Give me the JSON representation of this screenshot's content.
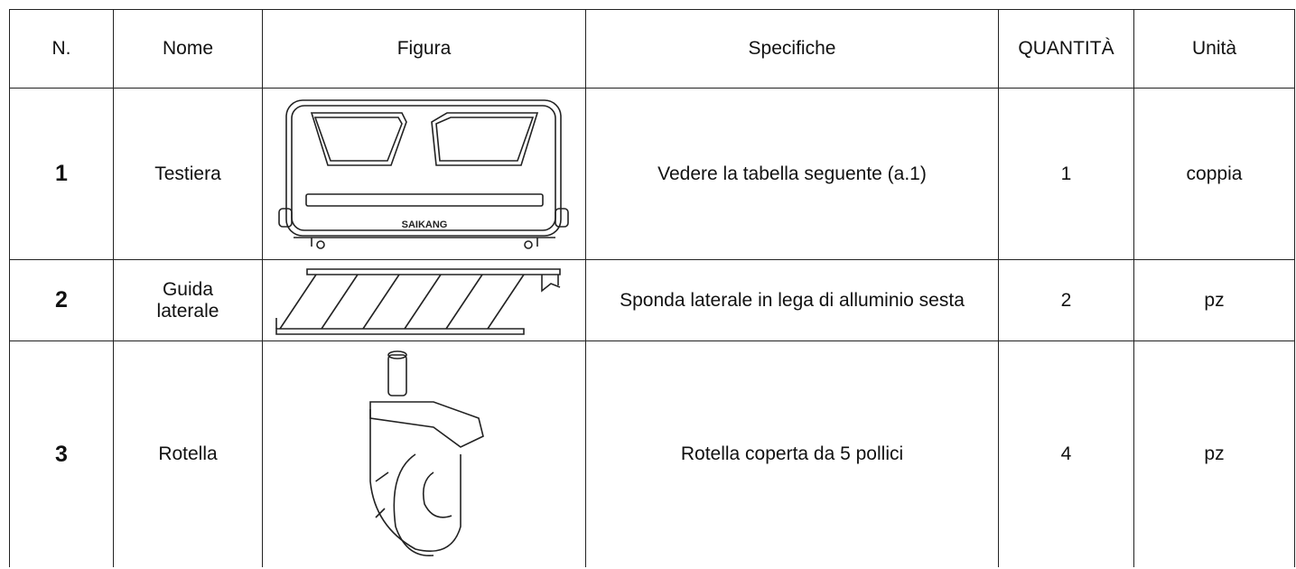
{
  "table": {
    "header": [
      "N.",
      "Nome",
      "Figura",
      "Specifiche",
      "QUANTITÀ",
      "Unità"
    ],
    "rows": [
      {
        "number": 1,
        "name": "Testiera",
        "figure_label": "SAIKANG",
        "spec": "Vedere la tabella seguente (a.1)",
        "quantity": 1,
        "unit": "coppia"
      },
      {
        "number": 2,
        "name": "Guida laterale",
        "spec": "Sponda laterale in lega di alluminio sesta",
        "quantity": 2,
        "unit": "pz"
      },
      {
        "number": 3,
        "name": "Rotella",
        "spec": "Rotella coperta da 5 pollici",
        "quantity": 4,
        "unit": "pz"
      }
    ]
  }
}
